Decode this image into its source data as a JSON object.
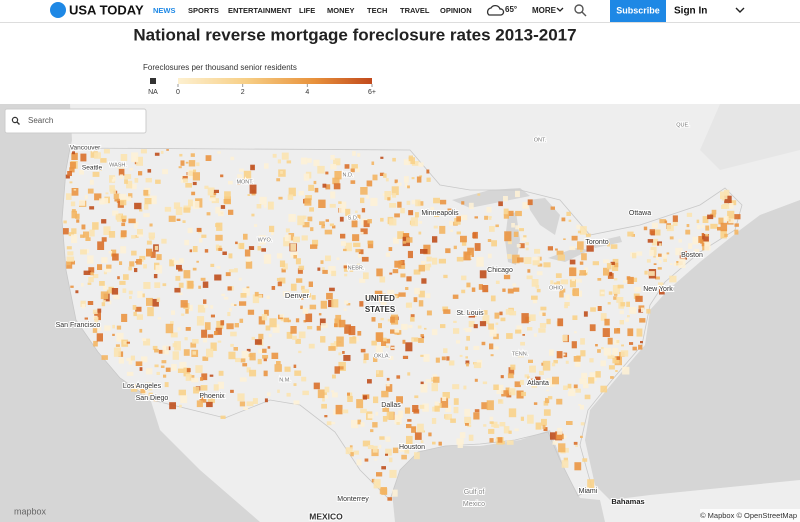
{
  "header": {
    "logo": "USA TODAY",
    "nav": [
      "NEWS",
      "SPORTS",
      "ENTERTAINMENT",
      "LIFE",
      "MONEY",
      "TECH",
      "TRAVEL",
      "OPINION"
    ],
    "weather": "65°",
    "more": "MORE",
    "subscribe": "Subscribe",
    "sign_in": "Sign In"
  },
  "title": "National reverse mortgage foreclosure rates 2013-2017",
  "legend": {
    "title": "Foreclosures per thousand senior residents",
    "na": "NA",
    "ticks": [
      0,
      2,
      4,
      {
        "value": 6,
        "label": "6+"
      }
    ]
  },
  "map": {
    "search_placeholder": "Search",
    "labels": [
      "Vancouver",
      "Seattle",
      "WASH.",
      "MONT.",
      "N.D.",
      "S.D.",
      "Minneapolis",
      "WYO.",
      "NEBR.",
      "Denver",
      "UNITED",
      "STATES",
      "San Francisco",
      "Chicago",
      "OHIO",
      "St. Louis",
      "New York",
      "Boston",
      "Toronto",
      "Ottawa",
      "QUE.",
      "ONT.",
      "TENN.",
      "OKLA.",
      "N.M.",
      "Los Angeles",
      "San Diego",
      "Phoenix",
      "Dallas",
      "Atlanta",
      "Houston",
      "Miami",
      "Bahamas",
      "Monterrey",
      "MEXICO",
      "Gulf of",
      "Mexico"
    ],
    "attribution_left": "mapbox",
    "attribution_right": "© Mapbox © OpenStreetMap"
  }
}
